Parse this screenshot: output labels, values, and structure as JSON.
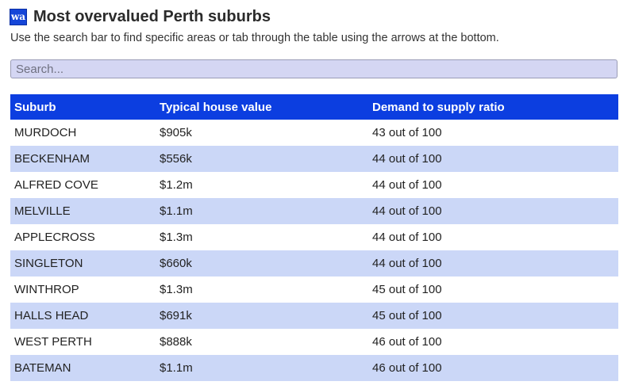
{
  "header": {
    "logo_text": "wa",
    "title": "Most overvalued Perth suburbs",
    "subtitle": "Use the search bar to find specific areas or tab through the table using the arrows at the bottom."
  },
  "search": {
    "placeholder": "Search...",
    "value": ""
  },
  "table": {
    "columns": [
      "Suburb",
      "Typical house value",
      "Demand to supply ratio"
    ],
    "rows": [
      [
        "MURDOCH",
        "$905k",
        "43 out of 100"
      ],
      [
        "BECKENHAM",
        "$556k",
        "44 out of 100"
      ],
      [
        "ALFRED COVE",
        "$1.2m",
        "44 out of 100"
      ],
      [
        "MELVILLE",
        "$1.1m",
        "44 out of 100"
      ],
      [
        "APPLECROSS",
        "$1.3m",
        "44 out of 100"
      ],
      [
        "SINGLETON",
        "$660k",
        "44 out of 100"
      ],
      [
        "WINTHROP",
        "$1.3m",
        "45 out of 100"
      ],
      [
        "HALLS HEAD",
        "$691k",
        "45 out of 100"
      ],
      [
        "WEST PERTH",
        "$888k",
        "46 out of 100"
      ],
      [
        "BATEMAN",
        "$1.1m",
        "46 out of 100"
      ]
    ]
  },
  "colors": {
    "header_bg": "#0c3ee0",
    "row_alt_bg": "#cbd7f7",
    "search_bg": "#d4d6f3"
  }
}
